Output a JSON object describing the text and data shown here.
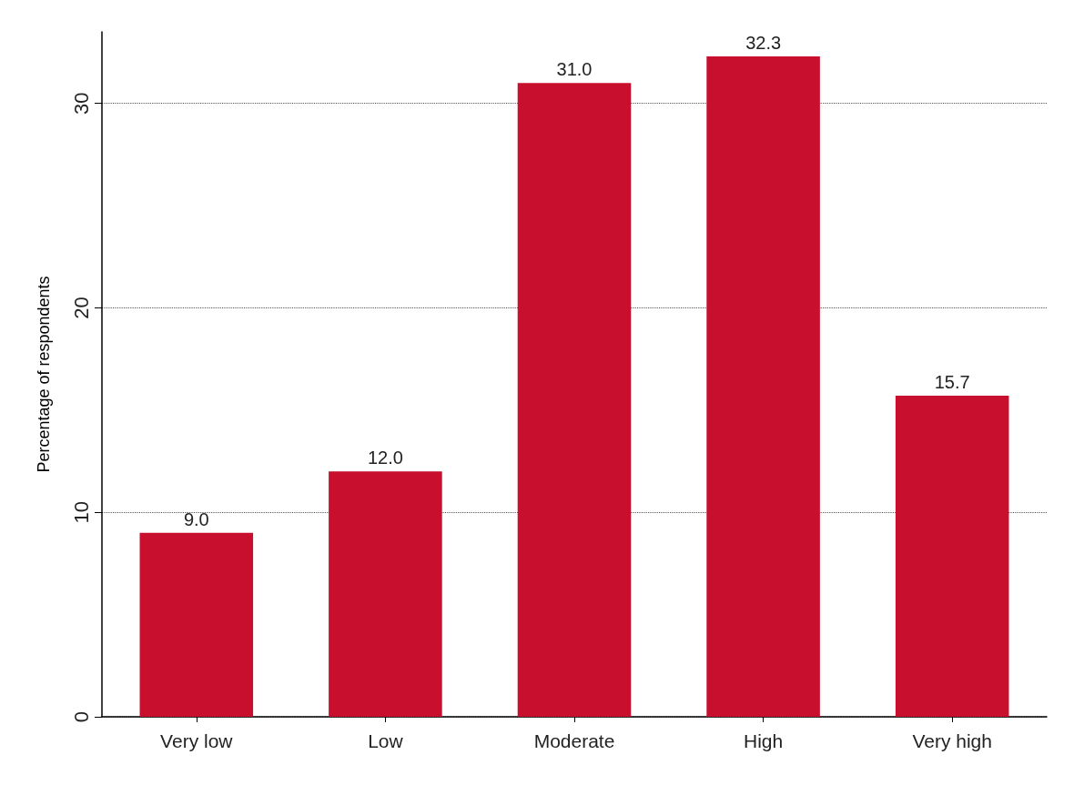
{
  "chart_data": {
    "type": "bar",
    "ylabel": "Percentage of respondents",
    "categories": [
      "Very low",
      "Low",
      "Moderate",
      "High",
      "Very high"
    ],
    "values": [
      9.0,
      12.0,
      31.0,
      32.3,
      15.7
    ],
    "value_labels": [
      "9.0",
      "12.0",
      "31.0",
      "32.3",
      "15.7"
    ],
    "color": "#c8102e",
    "ylim": [
      0,
      33.5
    ],
    "yticks": [
      0,
      10,
      20,
      30
    ],
    "grid": "y"
  }
}
